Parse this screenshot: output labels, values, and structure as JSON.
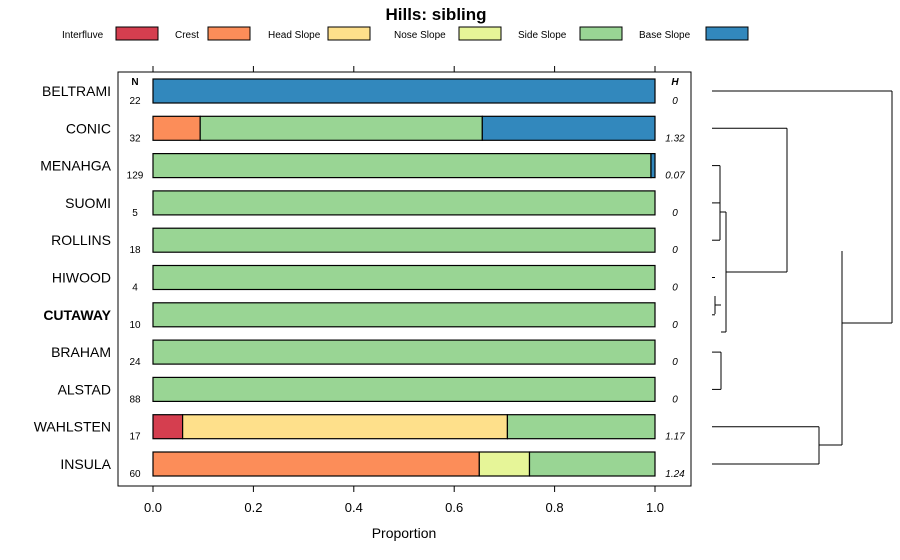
{
  "chart_data": {
    "type": "bar",
    "subtype": "stacked-horizontal-proportion",
    "title": "Hills: sibling",
    "xlabel": "Proportion",
    "ylabel": "",
    "xlim": [
      0,
      1
    ],
    "x_ticks": [
      "0.0",
      "0.2",
      "0.4",
      "0.6",
      "0.8",
      "1.0"
    ],
    "x_tick_values": [
      0,
      0.2,
      0.4,
      0.6,
      0.8,
      1.0
    ],
    "n_header": "N",
    "h_header": "H",
    "legend": [
      {
        "name": "Interfluve",
        "color": "#d53e4f"
      },
      {
        "name": "Crest",
        "color": "#fc8d59"
      },
      {
        "name": "Head Slope",
        "color": "#fee08b"
      },
      {
        "name": "Nose Slope",
        "color": "#e6f598"
      },
      {
        "name": "Side Slope",
        "color": "#99d594"
      },
      {
        "name": "Base Slope",
        "color": "#3288bd"
      }
    ],
    "highlight": "CUTAWAY",
    "rows": [
      {
        "name": "BELTRAMI",
        "n": "22",
        "h": "0",
        "values": [
          0,
          0,
          0,
          0,
          0,
          1.0
        ]
      },
      {
        "name": "CONIC",
        "n": "32",
        "h": "1.32",
        "values": [
          0,
          0.094,
          0,
          0,
          0.562,
          0.344
        ]
      },
      {
        "name": "MENAHGA",
        "n": "129",
        "h": "0.07",
        "values": [
          0,
          0,
          0,
          0,
          0.992,
          0.008
        ]
      },
      {
        "name": "SUOMI",
        "n": "5",
        "h": "0",
        "values": [
          0,
          0,
          0,
          0,
          1.0,
          0
        ]
      },
      {
        "name": "ROLLINS",
        "n": "18",
        "h": "0",
        "values": [
          0,
          0,
          0,
          0,
          1.0,
          0
        ]
      },
      {
        "name": "HIWOOD",
        "n": "4",
        "h": "0",
        "values": [
          0,
          0,
          0,
          0,
          1.0,
          0
        ]
      },
      {
        "name": "CUTAWAY",
        "n": "10",
        "h": "0",
        "values": [
          0,
          0,
          0,
          0,
          1.0,
          0
        ]
      },
      {
        "name": "BRAHAM",
        "n": "24",
        "h": "0",
        "values": [
          0,
          0,
          0,
          0,
          1.0,
          0
        ]
      },
      {
        "name": "ALSTAD",
        "n": "88",
        "h": "0",
        "values": [
          0,
          0,
          0,
          0,
          1.0,
          0
        ]
      },
      {
        "name": "WAHLSTEN",
        "n": "17",
        "h": "1.17",
        "values": [
          0.059,
          0,
          0.647,
          0,
          0.294,
          0
        ]
      },
      {
        "name": "INSULA",
        "n": "60",
        "h": "1.24",
        "values": [
          0,
          0.65,
          0,
          0.1,
          0.25,
          0
        ]
      }
    ]
  }
}
